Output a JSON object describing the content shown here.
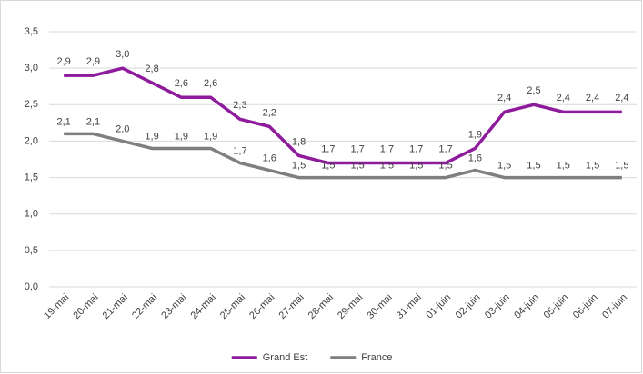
{
  "chart_data": {
    "type": "line",
    "categories": [
      "19-mai",
      "20-mai",
      "21-mai",
      "22-mai",
      "23-mai",
      "24-mai",
      "25-mai",
      "26-mai",
      "27-mai",
      "28-mai",
      "29-mai",
      "30-mai",
      "31-mai",
      "01-juin",
      "02-juin",
      "03-juin",
      "04-juin",
      "05-juin",
      "06-juin",
      "07-juin"
    ],
    "series": [
      {
        "name": "Grand Est",
        "color": "#8e1a9c",
        "values": [
          2.9,
          2.9,
          3.0,
          2.8,
          2.6,
          2.6,
          2.3,
          2.2,
          1.8,
          1.7,
          1.7,
          1.7,
          1.7,
          1.7,
          1.9,
          2.4,
          2.5,
          2.4,
          2.4,
          2.4
        ],
        "value_labels": [
          "2,9",
          "2,9",
          "3,0",
          "2,8",
          "2,6",
          "2,6",
          "2,3",
          "2,2",
          "1,8",
          "1,7",
          "1,7",
          "1,7",
          "1,7",
          "1,7",
          "1,9",
          "2,4",
          "2,5",
          "2,4",
          "2,4",
          "2,4"
        ]
      },
      {
        "name": "France",
        "color": "#7f7f7f",
        "values": [
          2.1,
          2.1,
          2.0,
          1.9,
          1.9,
          1.9,
          1.7,
          1.6,
          1.5,
          1.5,
          1.5,
          1.5,
          1.5,
          1.5,
          1.6,
          1.5,
          1.5,
          1.5,
          1.5,
          1.5
        ],
        "value_labels": [
          "2,1",
          "2,1",
          "2,0",
          "1,9",
          "1,9",
          "1,9",
          "1,7",
          "1,6",
          "1,5",
          "1,5",
          "1,5",
          "1,5",
          "1,5",
          "1,5",
          "1,6",
          "1,5",
          "1,5",
          "1,5",
          "1,5",
          "1,5"
        ]
      }
    ],
    "ylim": [
      0,
      3.5
    ],
    "yticks": [
      {
        "value": 0,
        "label": "0,0"
      },
      {
        "value": 0.5,
        "label": "0,5"
      },
      {
        "value": 1,
        "label": "1,0"
      },
      {
        "value": 1.5,
        "label": "1,5"
      },
      {
        "value": 2,
        "label": "2,0"
      },
      {
        "value": 2.5,
        "label": "2,5"
      },
      {
        "value": 3,
        "label": "3,0"
      },
      {
        "value": 3.5,
        "label": "3,5"
      }
    ],
    "grid": true,
    "legend": "bottom"
  }
}
